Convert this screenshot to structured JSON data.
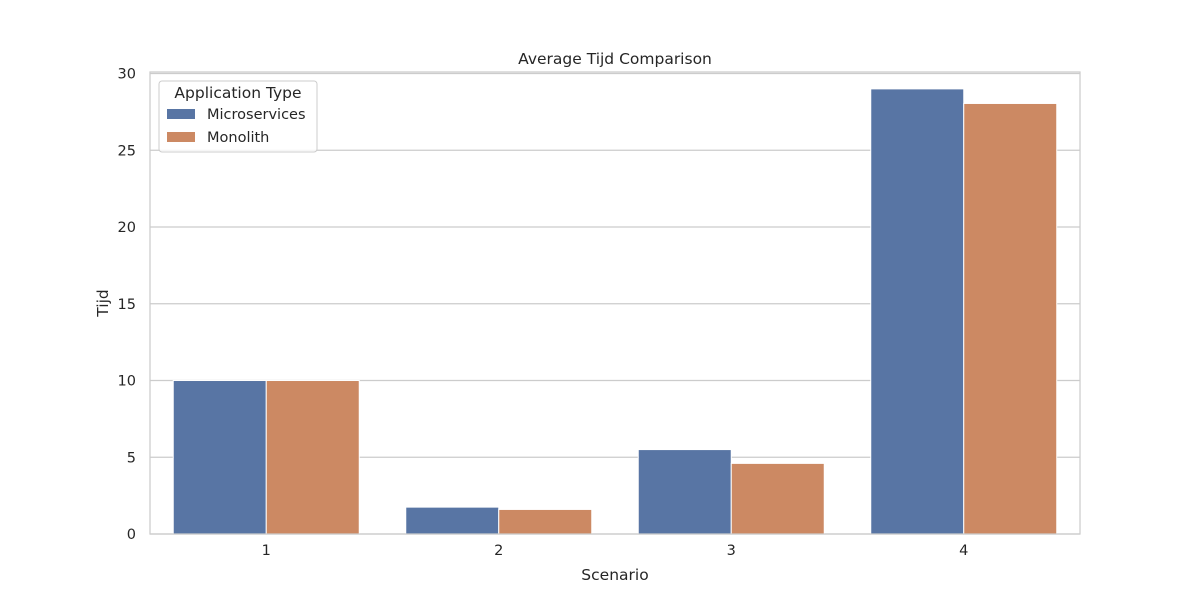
{
  "chart_data": {
    "type": "bar",
    "title": "Average Tijd Comparison",
    "xlabel": "Scenario",
    "ylabel": "Tijd",
    "categories": [
      "1",
      "2",
      "3",
      "4"
    ],
    "series": [
      {
        "name": "Microservices",
        "values": [
          10.0,
          1.75,
          5.5,
          29.0
        ],
        "color": "#5875a4"
      },
      {
        "name": "Monolith",
        "values": [
          10.0,
          1.6,
          4.6,
          28.05
        ],
        "color": "#cc8963"
      }
    ],
    "ylim": [
      0,
      30.1
    ],
    "yticks": [
      0,
      5,
      10,
      15,
      20,
      25,
      30
    ],
    "grid": "horizontal",
    "legend": {
      "title": "Application Type",
      "placement": "top-left"
    }
  }
}
